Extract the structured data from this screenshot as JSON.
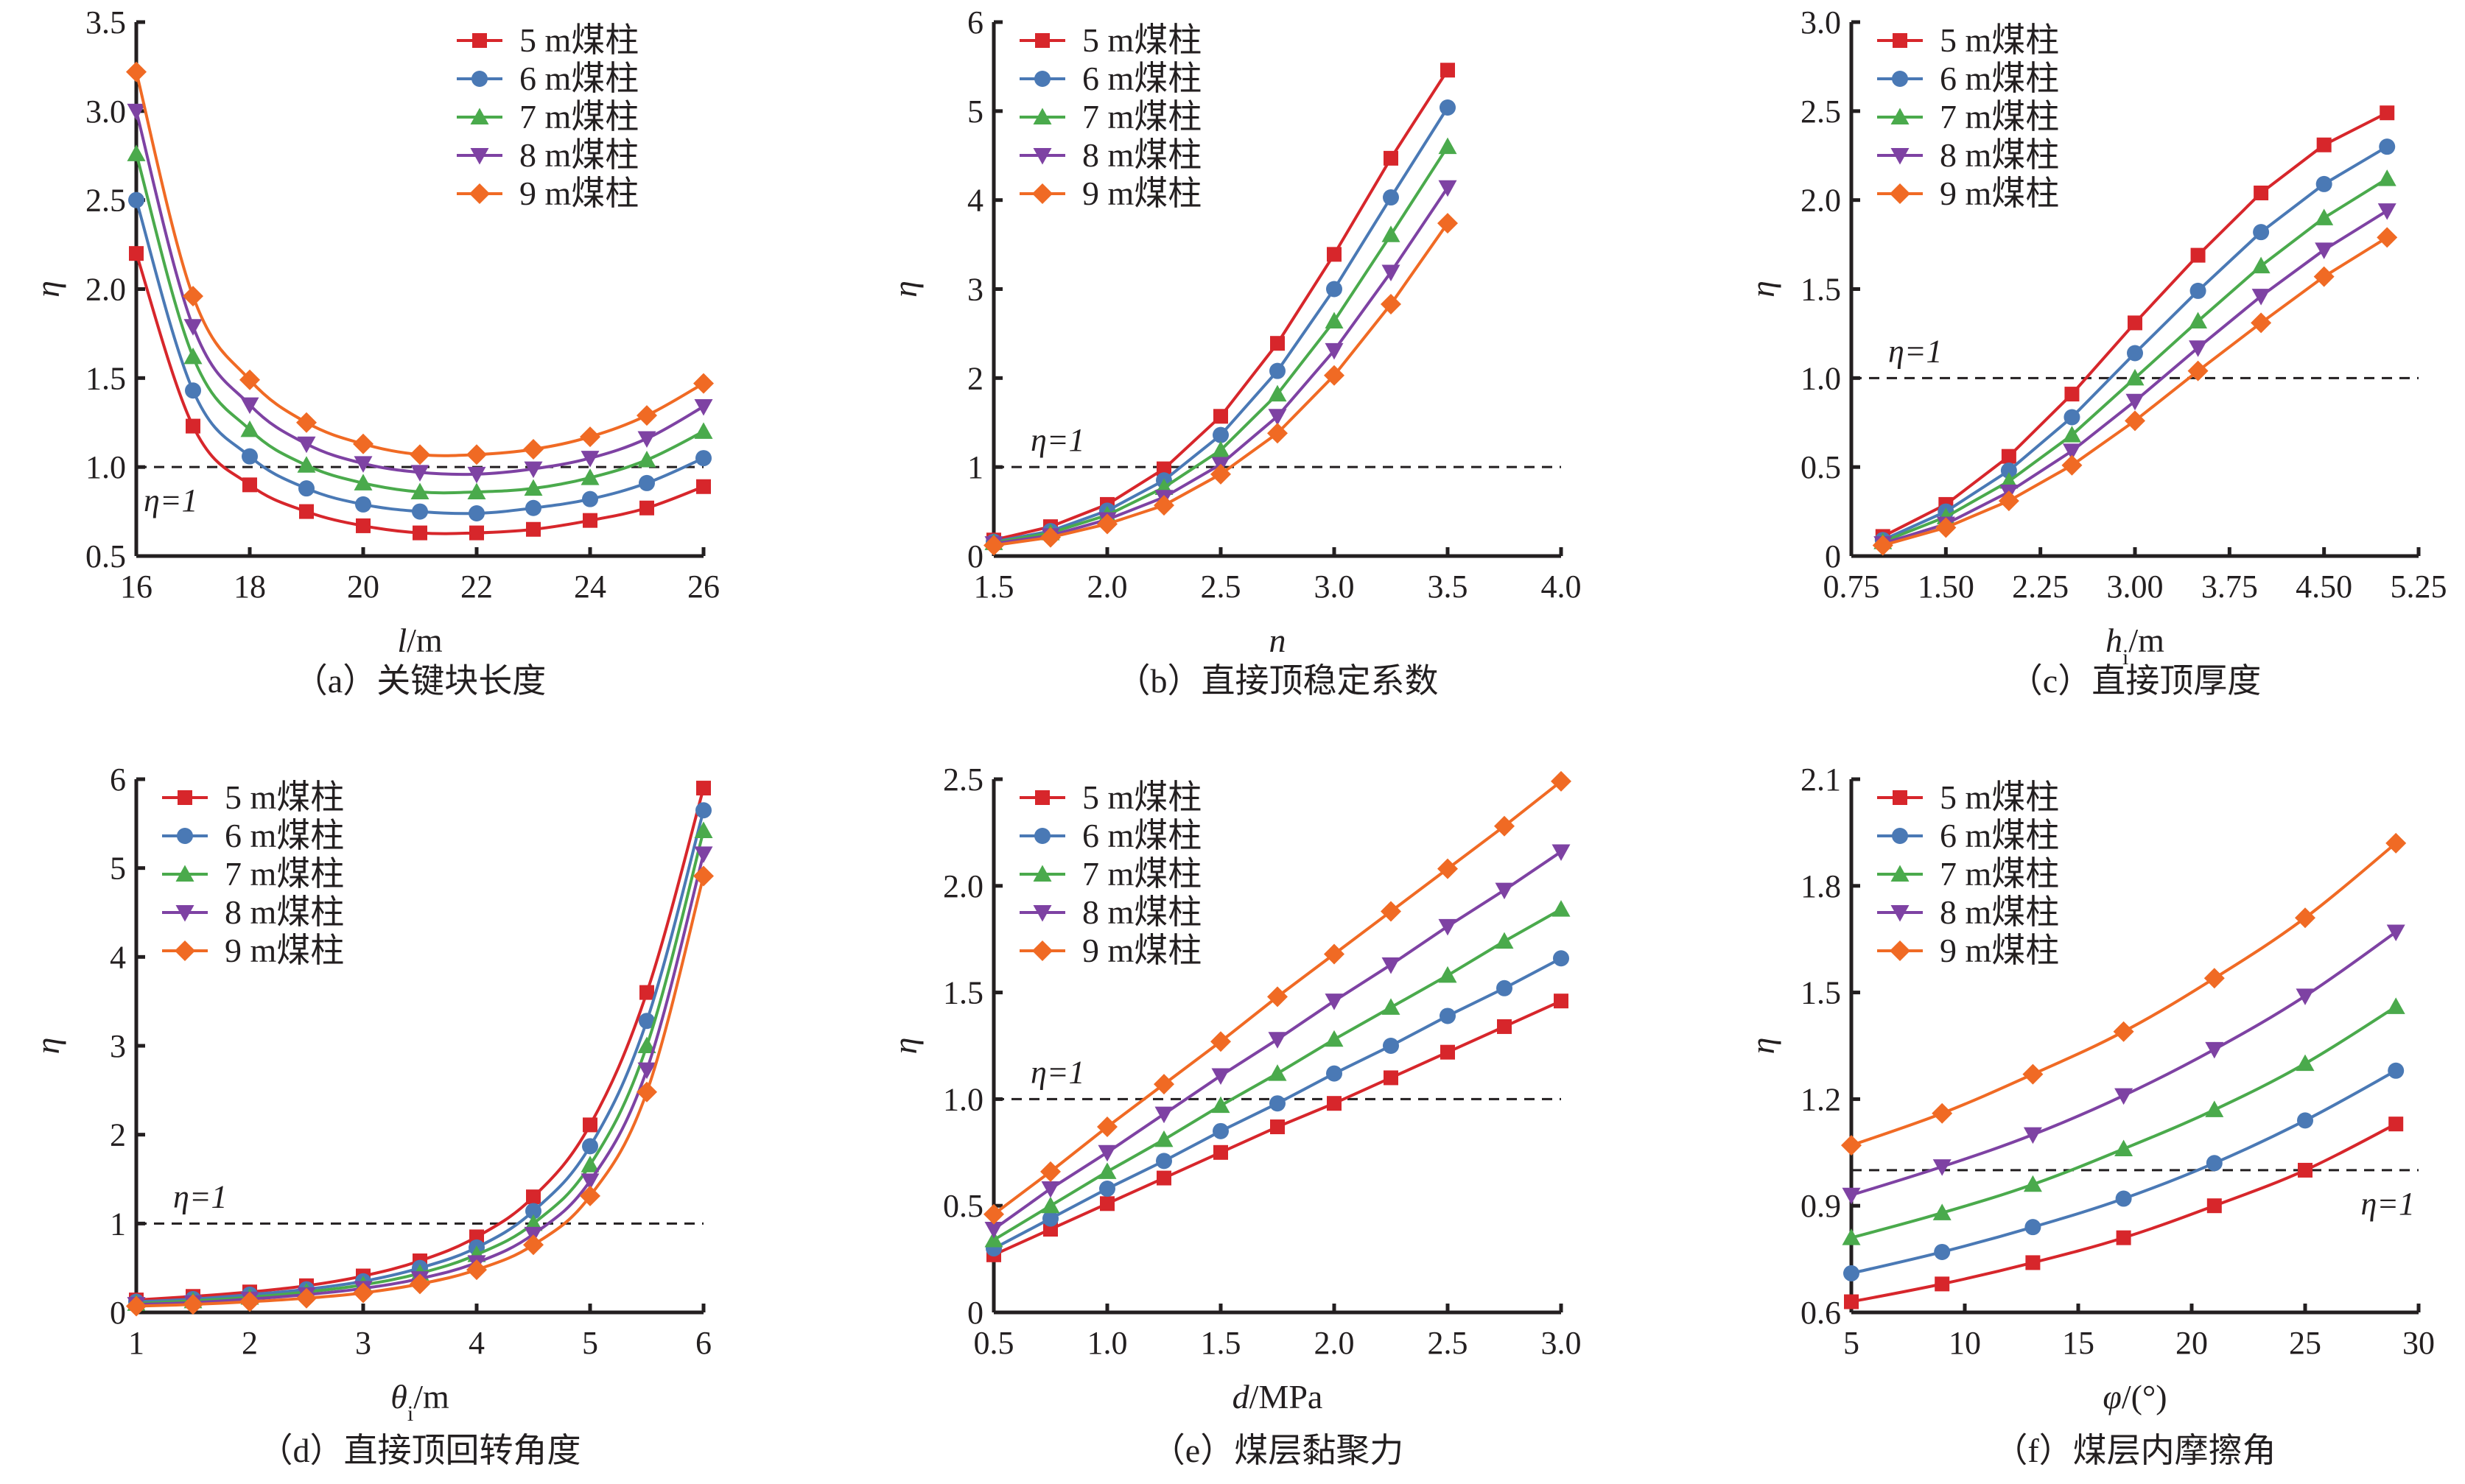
{
  "series_styles": [
    {
      "name": "5 m煤柱",
      "color": "#d7262b",
      "marker": "square"
    },
    {
      "name": "6 m煤柱",
      "color": "#4a79b5",
      "marker": "circle"
    },
    {
      "name": "7 m煤柱",
      "color": "#4aaa4c",
      "marker": "triangle-up"
    },
    {
      "name": "8 m煤柱",
      "color": "#7e42a3",
      "marker": "triangle-down"
    },
    {
      "name": "9 m煤柱",
      "color": "#f06a24",
      "marker": "diamond"
    }
  ],
  "reference_line": {
    "value": 1,
    "label": "η=1",
    "style": "dashed",
    "color": "#231f20"
  },
  "chart_data": [
    {
      "id": "a",
      "type": "line",
      "caption": "（a）关键块长度",
      "title": "",
      "xlabel": "l/m",
      "xlabel_italic": "l",
      "xlabel_rest": "/m",
      "ylabel": "η",
      "xlim": [
        16,
        26
      ],
      "ylim": [
        0.5,
        3.5
      ],
      "xticks": [
        16,
        18,
        20,
        22,
        24,
        26
      ],
      "xtick_labels": [
        "16",
        "18",
        "20",
        "22",
        "24",
        "26"
      ],
      "yticks": [
        0.5,
        1.0,
        1.5,
        2.0,
        2.5,
        3.0,
        3.5
      ],
      "ytick_labels": [
        "0.5",
        "1.0",
        "1.5",
        "2.0",
        "2.5",
        "3.0",
        "3.5"
      ],
      "smooth": true,
      "legend": "top-right",
      "ref_label_position": "below-left",
      "x": [
        16,
        17,
        18,
        19,
        20,
        21,
        22,
        23,
        24,
        25,
        26
      ],
      "series": [
        {
          "name": "5 m煤柱",
          "values": [
            2.2,
            1.23,
            0.9,
            0.75,
            0.67,
            0.63,
            0.63,
            0.65,
            0.7,
            0.77,
            0.89
          ]
        },
        {
          "name": "6 m煤柱",
          "values": [
            2.5,
            1.43,
            1.06,
            0.88,
            0.79,
            0.75,
            0.74,
            0.77,
            0.82,
            0.91,
            1.05
          ]
        },
        {
          "name": "7 m煤柱",
          "values": [
            2.76,
            1.62,
            1.21,
            1.01,
            0.91,
            0.86,
            0.86,
            0.88,
            0.94,
            1.04,
            1.2
          ]
        },
        {
          "name": "8 m煤柱",
          "values": [
            3.0,
            1.79,
            1.35,
            1.13,
            1.02,
            0.97,
            0.96,
            0.99,
            1.05,
            1.16,
            1.34
          ]
        },
        {
          "name": "9 m煤柱",
          "values": [
            3.22,
            1.96,
            1.49,
            1.25,
            1.13,
            1.07,
            1.07,
            1.1,
            1.17,
            1.29,
            1.47
          ]
        }
      ]
    },
    {
      "id": "b",
      "type": "line",
      "caption": "（b）直接顶稳定系数",
      "title": "",
      "xlabel": "n",
      "xlabel_italic": "n",
      "xlabel_rest": "",
      "ylabel": "η",
      "xlim": [
        1.5,
        4.0
      ],
      "ylim": [
        0,
        6
      ],
      "xticks": [
        1.5,
        2.0,
        2.5,
        3.0,
        3.5,
        4.0
      ],
      "xtick_labels": [
        "1.5",
        "2.0",
        "2.5",
        "3.0",
        "3.5",
        "4.0"
      ],
      "yticks": [
        0,
        1,
        2,
        3,
        4,
        5,
        6
      ],
      "ytick_labels": [
        "0",
        "1",
        "2",
        "3",
        "4",
        "5",
        "6"
      ],
      "smooth": false,
      "legend": "top-left",
      "ref_label_position": "above-left",
      "x": [
        1.5,
        1.75,
        2.0,
        2.25,
        2.5,
        2.75,
        3.0,
        3.25,
        3.5
      ],
      "series": [
        {
          "name": "5 m煤柱",
          "values": [
            0.18,
            0.33,
            0.58,
            0.98,
            1.57,
            2.39,
            3.39,
            4.47,
            5.46
          ]
        },
        {
          "name": "6 m煤柱",
          "values": [
            0.16,
            0.28,
            0.51,
            0.85,
            1.36,
            2.08,
            3.0,
            4.03,
            5.04
          ]
        },
        {
          "name": "7 m煤柱",
          "values": [
            0.15,
            0.26,
            0.46,
            0.77,
            1.19,
            1.82,
            2.64,
            3.61,
            4.6
          ]
        },
        {
          "name": "8 m煤柱",
          "values": [
            0.14,
            0.23,
            0.41,
            0.66,
            1.03,
            1.57,
            2.31,
            3.19,
            4.14
          ]
        },
        {
          "name": "9 m煤柱",
          "values": [
            0.12,
            0.21,
            0.36,
            0.57,
            0.92,
            1.38,
            2.03,
            2.83,
            3.74
          ]
        }
      ]
    },
    {
      "id": "c",
      "type": "line",
      "caption": "（c）直接顶厚度",
      "title": "",
      "xlabel": "hi/m",
      "xlabel_italic": "h",
      "xlabel_sub": "i",
      "xlabel_rest": "/m",
      "ylabel": "η",
      "xlim": [
        0.75,
        5.25
      ],
      "ylim": [
        0,
        3.0
      ],
      "xticks": [
        0.75,
        1.5,
        2.25,
        3.0,
        3.75,
        4.5,
        5.25
      ],
      "xtick_labels": [
        "0.75",
        "1.50",
        "2.25",
        "3.00",
        "3.75",
        "4.50",
        "5.25"
      ],
      "yticks": [
        0,
        0.5,
        1.0,
        1.5,
        2.0,
        2.5,
        3.0
      ],
      "ytick_labels": [
        "0",
        "0.5",
        "1.0",
        "1.5",
        "2.0",
        "2.5",
        "3.0"
      ],
      "smooth": false,
      "legend": "top-left",
      "ref_label_position": "above-left",
      "x": [
        1.0,
        1.5,
        2.0,
        2.5,
        3.0,
        3.5,
        4.0,
        4.5,
        5.0
      ],
      "series": [
        {
          "name": "5 m煤柱",
          "values": [
            0.11,
            0.29,
            0.56,
            0.91,
            1.31,
            1.69,
            2.04,
            2.31,
            2.49
          ]
        },
        {
          "name": "6 m煤柱",
          "values": [
            0.09,
            0.25,
            0.48,
            0.78,
            1.14,
            1.49,
            1.82,
            2.09,
            2.3
          ]
        },
        {
          "name": "7 m煤柱",
          "values": [
            0.08,
            0.22,
            0.42,
            0.68,
            1.0,
            1.32,
            1.63,
            1.9,
            2.12
          ]
        },
        {
          "name": "8 m煤柱",
          "values": [
            0.07,
            0.18,
            0.36,
            0.59,
            0.87,
            1.17,
            1.46,
            1.72,
            1.94
          ]
        },
        {
          "name": "9 m煤柱",
          "values": [
            0.06,
            0.16,
            0.31,
            0.51,
            0.76,
            1.04,
            1.31,
            1.57,
            1.79
          ]
        }
      ]
    },
    {
      "id": "d",
      "type": "line",
      "caption": "（d）直接顶回转角度",
      "title": "",
      "xlabel": "θi/m",
      "xlabel_italic": "θ",
      "xlabel_sub": "i",
      "xlabel_rest": "/m",
      "ylabel": "η",
      "xlim": [
        1,
        6
      ],
      "ylim": [
        0,
        6
      ],
      "xticks": [
        1,
        2,
        3,
        4,
        5,
        6
      ],
      "xtick_labels": [
        "1",
        "2",
        "3",
        "4",
        "5",
        "6"
      ],
      "yticks": [
        0,
        1,
        2,
        3,
        4,
        5,
        6
      ],
      "ytick_labels": [
        "0",
        "1",
        "2",
        "3",
        "4",
        "5",
        "6"
      ],
      "smooth": true,
      "legend": "top-left",
      "ref_label_position": "above-left",
      "x": [
        1.0,
        1.5,
        2.0,
        2.5,
        3.0,
        3.5,
        4.0,
        4.5,
        5.0,
        5.5,
        6.0
      ],
      "series": [
        {
          "name": "5 m煤柱",
          "values": [
            0.14,
            0.18,
            0.23,
            0.3,
            0.41,
            0.58,
            0.85,
            1.3,
            2.11,
            3.6,
            5.9
          ]
        },
        {
          "name": "6 m煤柱",
          "values": [
            0.12,
            0.15,
            0.2,
            0.26,
            0.35,
            0.5,
            0.73,
            1.14,
            1.87,
            3.28,
            5.65
          ]
        },
        {
          "name": "7 m煤柱",
          "values": [
            0.1,
            0.13,
            0.17,
            0.23,
            0.31,
            0.44,
            0.65,
            1.0,
            1.66,
            3.0,
            5.42
          ]
        },
        {
          "name": "8 m煤柱",
          "values": [
            0.09,
            0.11,
            0.15,
            0.2,
            0.27,
            0.38,
            0.56,
            0.88,
            1.48,
            2.73,
            5.16
          ]
        },
        {
          "name": "9 m煤柱",
          "values": [
            0.07,
            0.09,
            0.12,
            0.16,
            0.22,
            0.32,
            0.48,
            0.76,
            1.31,
            2.48,
            4.91
          ]
        }
      ]
    },
    {
      "id": "e",
      "type": "line",
      "caption": "（e）煤层黏聚力",
      "title": "",
      "xlabel": "d/MPa",
      "xlabel_italic": "d",
      "xlabel_rest": "/MPa",
      "ylabel": "η",
      "xlim": [
        0.5,
        3.0
      ],
      "ylim": [
        0,
        2.5
      ],
      "xticks": [
        0.5,
        1.0,
        1.5,
        2.0,
        2.5,
        3.0
      ],
      "xtick_labels": [
        "0.5",
        "1.0",
        "1.5",
        "2.0",
        "2.5",
        "3.0"
      ],
      "yticks": [
        0,
        0.5,
        1.0,
        1.5,
        2.0,
        2.5
      ],
      "ytick_labels": [
        "0",
        "0.5",
        "1.0",
        "1.5",
        "2.0",
        "2.5"
      ],
      "smooth": false,
      "legend": "top-left",
      "ref_label_position": "above-left",
      "x": [
        0.5,
        0.75,
        1.0,
        1.25,
        1.5,
        1.75,
        2.0,
        2.25,
        2.5,
        2.75,
        3.0
      ],
      "series": [
        {
          "name": "5 m煤柱",
          "values": [
            0.27,
            0.39,
            0.51,
            0.63,
            0.75,
            0.87,
            0.98,
            1.1,
            1.22,
            1.34,
            1.46
          ]
        },
        {
          "name": "6 m煤柱",
          "values": [
            0.3,
            0.44,
            0.58,
            0.71,
            0.85,
            0.98,
            1.12,
            1.25,
            1.39,
            1.52,
            1.66
          ]
        },
        {
          "name": "7 m煤柱",
          "values": [
            0.34,
            0.5,
            0.66,
            0.81,
            0.97,
            1.12,
            1.28,
            1.43,
            1.58,
            1.74,
            1.89
          ]
        },
        {
          "name": "8 m煤柱",
          "values": [
            0.39,
            0.58,
            0.75,
            0.93,
            1.11,
            1.28,
            1.46,
            1.63,
            1.81,
            1.98,
            2.16
          ]
        },
        {
          "name": "9 m煤柱",
          "values": [
            0.46,
            0.66,
            0.87,
            1.07,
            1.27,
            1.48,
            1.68,
            1.88,
            2.08,
            2.28,
            2.49
          ]
        }
      ]
    },
    {
      "id": "f",
      "type": "line",
      "caption": "（f）煤层内摩擦角",
      "title": "",
      "xlabel": "φ/(°)",
      "xlabel_italic": "φ",
      "xlabel_rest": "/(°)",
      "ylabel": "η",
      "xlim": [
        5,
        30
      ],
      "ylim": [
        0.6,
        2.1
      ],
      "xticks": [
        5,
        10,
        15,
        20,
        25,
        30
      ],
      "xtick_labels": [
        "5",
        "10",
        "15",
        "20",
        "25",
        "30"
      ],
      "yticks": [
        0.6,
        0.9,
        1.2,
        1.5,
        1.8,
        2.1
      ],
      "ytick_labels": [
        "0.6",
        "0.9",
        "1.2",
        "1.5",
        "1.8",
        "2.1"
      ],
      "smooth": true,
      "legend": "top-left",
      "ref_label_position": "below-right",
      "x": [
        5,
        9,
        13,
        17,
        21,
        25,
        29
      ],
      "series": [
        {
          "name": "5 m煤柱",
          "values": [
            0.63,
            0.68,
            0.74,
            0.81,
            0.9,
            1.0,
            1.13
          ]
        },
        {
          "name": "6 m煤柱",
          "values": [
            0.71,
            0.77,
            0.84,
            0.92,
            1.02,
            1.14,
            1.28
          ]
        },
        {
          "name": "7 m煤柱",
          "values": [
            0.81,
            0.88,
            0.96,
            1.06,
            1.17,
            1.3,
            1.46
          ]
        },
        {
          "name": "8 m煤柱",
          "values": [
            0.93,
            1.01,
            1.1,
            1.21,
            1.34,
            1.49,
            1.67
          ]
        },
        {
          "name": "9 m煤柱",
          "values": [
            1.07,
            1.16,
            1.27,
            1.39,
            1.54,
            1.71,
            1.92
          ]
        }
      ]
    }
  ]
}
